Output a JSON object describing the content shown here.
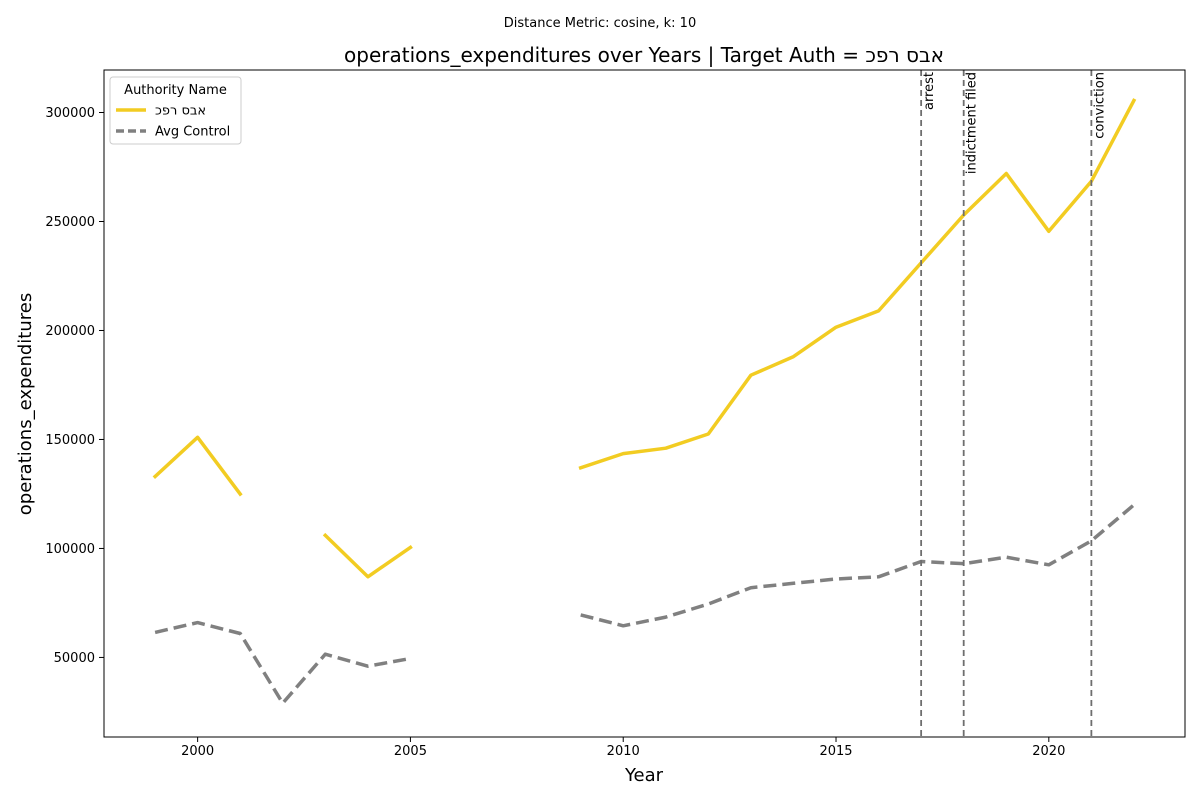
{
  "suptitle": "Distance Metric: cosine, k: 10",
  "chart_data": {
    "type": "line",
    "title": "operations_expenditures over Years | Target Auth = אבס רפכ",
    "xlabel": "Year",
    "ylabel": "operations_expenditures",
    "xlim": [
      1997.8,
      2023.2
    ],
    "ylim": [
      13500,
      319500
    ],
    "x_ticks": [
      2000,
      2005,
      2010,
      2015,
      2020
    ],
    "y_ticks": [
      50000,
      100000,
      150000,
      200000,
      250000,
      300000
    ],
    "grid": false,
    "legend": {
      "title": "Authority Name",
      "placement": "top-left"
    },
    "series": [
      {
        "name": "אבס רפכ",
        "color": "#F2CC22",
        "dash": "solid",
        "points": [
          [
            1999,
            133000
          ],
          [
            2000,
            151000
          ],
          [
            2001,
            125000
          ],
          [
            2002,
            null
          ],
          [
            2003,
            106000
          ],
          [
            2004,
            87000
          ],
          [
            2005,
            100500
          ],
          [
            2006,
            null
          ],
          [
            2007,
            null
          ],
          [
            2008,
            null
          ],
          [
            2009,
            137000
          ],
          [
            2010,
            143500
          ],
          [
            2011,
            146000
          ],
          [
            2012,
            152500
          ],
          [
            2013,
            179500
          ],
          [
            2014,
            188000
          ],
          [
            2015,
            201500
          ],
          [
            2016,
            209000
          ],
          [
            2017,
            231000
          ],
          [
            2018,
            253000
          ],
          [
            2019,
            272000
          ],
          [
            2020,
            245500
          ],
          [
            2021,
            268500
          ],
          [
            2022,
            305500
          ]
        ]
      },
      {
        "name": "Avg Control",
        "color": "#808080",
        "dash": "dashed",
        "points": [
          [
            1999,
            61500
          ],
          [
            2000,
            66000
          ],
          [
            2001,
            61000
          ],
          [
            2002,
            29000
          ],
          [
            2003,
            51500
          ],
          [
            2004,
            46000
          ],
          [
            2005,
            49500
          ],
          [
            2006,
            null
          ],
          [
            2007,
            null
          ],
          [
            2008,
            null
          ],
          [
            2009,
            69500
          ],
          [
            2010,
            64500
          ],
          [
            2011,
            68500
          ],
          [
            2012,
            74500
          ],
          [
            2013,
            82000
          ],
          [
            2014,
            84000
          ],
          [
            2015,
            86000
          ],
          [
            2016,
            87000
          ],
          [
            2017,
            94000
          ],
          [
            2018,
            93000
          ],
          [
            2019,
            96000
          ],
          [
            2020,
            92500
          ],
          [
            2021,
            103500
          ],
          [
            2022,
            120000
          ]
        ]
      }
    ],
    "events": [
      {
        "x": 2017,
        "label": "arrest"
      },
      {
        "x": 2018,
        "label": "indictment filed"
      },
      {
        "x": 2021,
        "label": "conviction"
      }
    ]
  }
}
